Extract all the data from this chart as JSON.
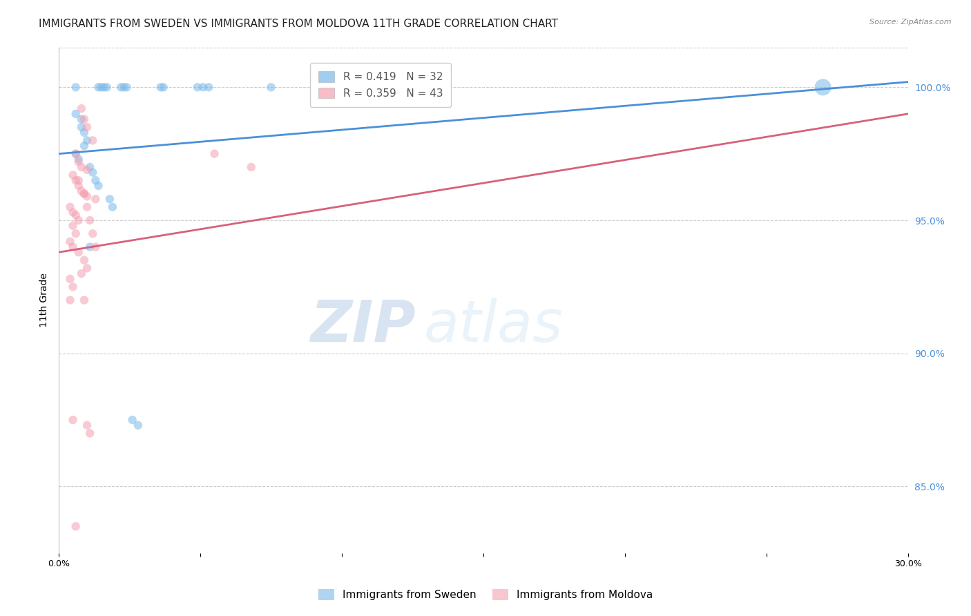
{
  "title": "IMMIGRANTS FROM SWEDEN VS IMMIGRANTS FROM MOLDOVA 11TH GRADE CORRELATION CHART",
  "source": "Source: ZipAtlas.com",
  "ylabel": "11th Grade",
  "right_yticks": [
    85.0,
    90.0,
    95.0,
    100.0
  ],
  "sweden_R": 0.419,
  "sweden_N": 32,
  "moldova_R": 0.359,
  "moldova_N": 43,
  "sweden_color": "#7ab8e8",
  "moldova_color": "#f4a0b0",
  "trend_sweden_color": "#4a90d9",
  "trend_moldova_color": "#d9607a",
  "sweden_points": [
    [
      0.006,
      100.0
    ],
    [
      0.014,
      100.0
    ],
    [
      0.015,
      100.0
    ],
    [
      0.016,
      100.0
    ],
    [
      0.017,
      100.0
    ],
    [
      0.022,
      100.0
    ],
    [
      0.023,
      100.0
    ],
    [
      0.024,
      100.0
    ],
    [
      0.036,
      100.0
    ],
    [
      0.037,
      100.0
    ],
    [
      0.049,
      100.0
    ],
    [
      0.051,
      100.0
    ],
    [
      0.053,
      100.0
    ],
    [
      0.075,
      100.0
    ],
    [
      0.27,
      100.0
    ],
    [
      0.006,
      99.0
    ],
    [
      0.008,
      98.8
    ],
    [
      0.008,
      98.5
    ],
    [
      0.009,
      98.3
    ],
    [
      0.01,
      98.0
    ],
    [
      0.009,
      97.8
    ],
    [
      0.006,
      97.5
    ],
    [
      0.007,
      97.3
    ],
    [
      0.011,
      97.0
    ],
    [
      0.012,
      96.8
    ],
    [
      0.013,
      96.5
    ],
    [
      0.014,
      96.3
    ],
    [
      0.018,
      95.8
    ],
    [
      0.019,
      95.5
    ],
    [
      0.011,
      94.0
    ],
    [
      0.026,
      87.5
    ],
    [
      0.028,
      87.3
    ]
  ],
  "moldova_points": [
    [
      0.008,
      99.2
    ],
    [
      0.009,
      98.8
    ],
    [
      0.01,
      98.5
    ],
    [
      0.012,
      98.0
    ],
    [
      0.006,
      97.5
    ],
    [
      0.007,
      97.2
    ],
    [
      0.008,
      97.0
    ],
    [
      0.01,
      96.9
    ],
    [
      0.005,
      96.7
    ],
    [
      0.006,
      96.5
    ],
    [
      0.007,
      96.3
    ],
    [
      0.008,
      96.1
    ],
    [
      0.009,
      96.0
    ],
    [
      0.01,
      95.9
    ],
    [
      0.013,
      95.8
    ],
    [
      0.004,
      95.5
    ],
    [
      0.005,
      95.3
    ],
    [
      0.006,
      95.2
    ],
    [
      0.007,
      95.0
    ],
    [
      0.005,
      94.8
    ],
    [
      0.006,
      94.5
    ],
    [
      0.004,
      94.2
    ],
    [
      0.005,
      94.0
    ],
    [
      0.007,
      93.8
    ],
    [
      0.009,
      93.5
    ],
    [
      0.01,
      93.2
    ],
    [
      0.004,
      92.8
    ],
    [
      0.005,
      92.5
    ],
    [
      0.004,
      92.0
    ],
    [
      0.055,
      97.5
    ],
    [
      0.068,
      97.0
    ],
    [
      0.005,
      87.5
    ],
    [
      0.01,
      87.3
    ],
    [
      0.011,
      87.0
    ],
    [
      0.006,
      83.5
    ],
    [
      0.007,
      96.5
    ],
    [
      0.009,
      96.0
    ],
    [
      0.01,
      95.5
    ],
    [
      0.011,
      95.0
    ],
    [
      0.012,
      94.5
    ],
    [
      0.013,
      94.0
    ],
    [
      0.008,
      93.0
    ],
    [
      0.009,
      92.0
    ]
  ],
  "xlim": [
    0.0,
    0.3
  ],
  "ylim": [
    82.5,
    101.5
  ],
  "sweden_marker_sizes": [
    80,
    80,
    80,
    80,
    80,
    80,
    80,
    80,
    80,
    80,
    80,
    80,
    80,
    80,
    300,
    80,
    80,
    80,
    80,
    80,
    80,
    80,
    80,
    80,
    80,
    80,
    80,
    80,
    80,
    80,
    80,
    80
  ],
  "moldova_marker_size": 80,
  "watermark_zip": "ZIP",
  "watermark_atlas": "atlas",
  "background_color": "#ffffff",
  "title_fontsize": 11,
  "axis_label_fontsize": 10,
  "tick_fontsize": 9,
  "legend_fontsize": 11,
  "right_axis_color": "#4a90d9",
  "sw_trend_x0": 0.0,
  "sw_trend_y0": 97.5,
  "sw_trend_x1": 0.3,
  "sw_trend_y1": 100.2,
  "md_trend_x0": 0.0,
  "md_trend_y0": 93.8,
  "md_trend_x1": 0.3,
  "md_trend_y1": 99.0
}
